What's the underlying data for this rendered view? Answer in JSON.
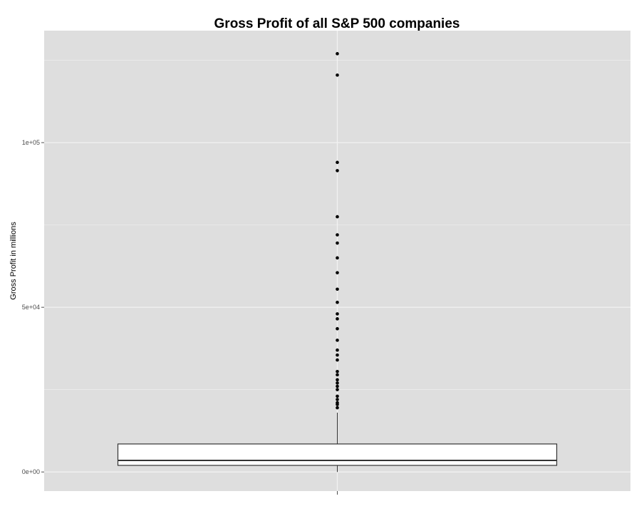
{
  "chart_data": {
    "type": "boxplot",
    "title": "Gross Profit of all S&P 500 companies",
    "xlabel": "",
    "ylabel": "Gross Profit in millions",
    "ylim": [
      -5800,
      134000
    ],
    "yticks": [
      {
        "value": 0,
        "label": "0e+00"
      },
      {
        "value": 50000,
        "label": "5e+04"
      },
      {
        "value": 100000,
        "label": "1e+05"
      }
    ],
    "y_minor_ticks": [
      25000,
      75000,
      125000
    ],
    "grid": true,
    "legend": "none",
    "box": {
      "lower_whisker": 0,
      "q1": 2000,
      "median": 3500,
      "q3": 8500,
      "upper_whisker": 18000
    },
    "outliers": [
      127000,
      120500,
      94000,
      91500,
      77500,
      72000,
      69500,
      65000,
      60500,
      55500,
      51500,
      48000,
      46500,
      43500,
      40000,
      37000,
      35500,
      34000,
      30500,
      29500,
      28000,
      27000,
      26000,
      25000,
      23000,
      22000,
      21000,
      20500,
      19500
    ],
    "colors": {
      "panel_background": "#dedede",
      "gridline": "#f2f2f2",
      "box_fill": "#ffffff",
      "box_stroke": "#333333",
      "point": "#000000"
    }
  }
}
